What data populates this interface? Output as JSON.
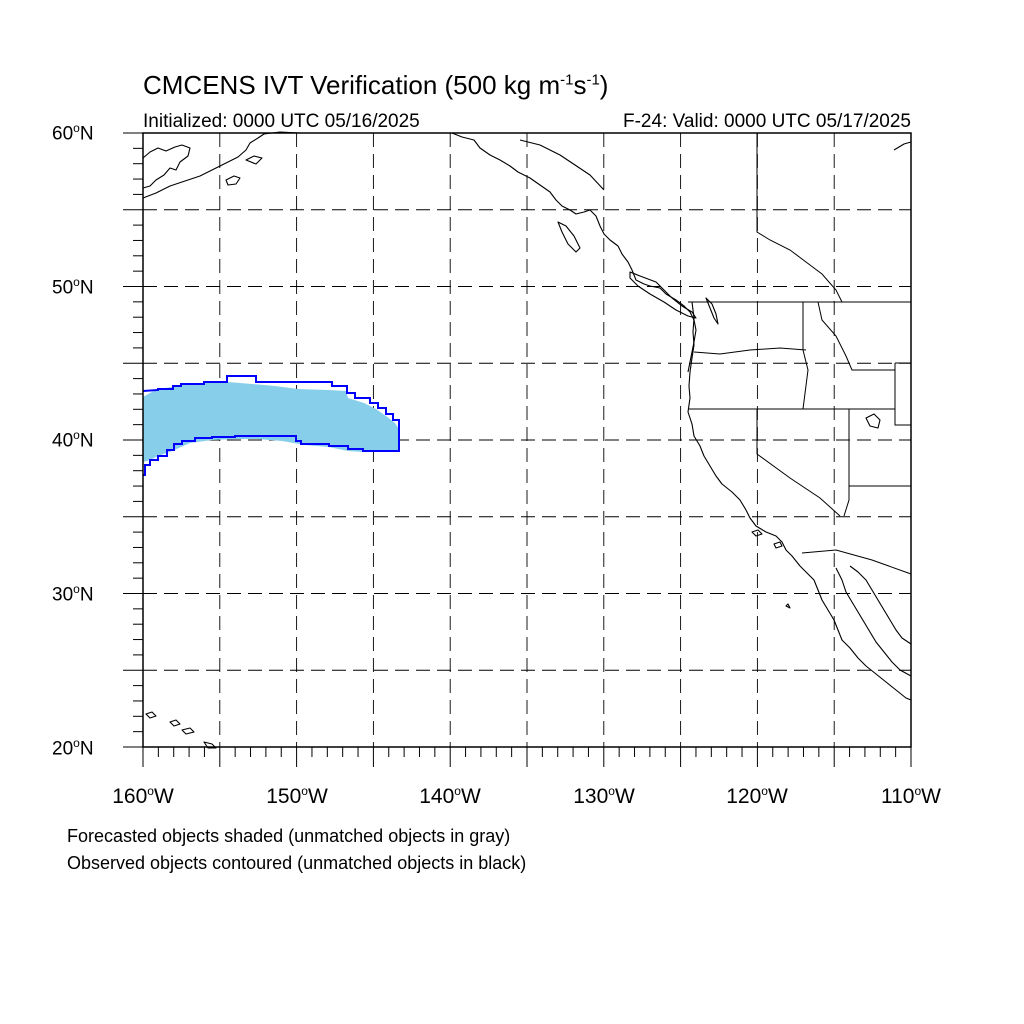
{
  "title": {
    "prefix": "CMCENS IVT Verification (500 kg m",
    "exp1": "-1",
    "mid": "s",
    "exp2": "-1",
    "suffix": ")"
  },
  "subtitle_left": "Initialized: 0000 UTC 05/16/2025",
  "subtitle_right": "F-24: Valid: 0000 UTC 05/17/2025",
  "map": {
    "lon_min": -160,
    "lon_max": -110,
    "lat_min": 20,
    "lat_max": 60,
    "gridlines": "dashed, every 5 degrees",
    "coastline_color": "#000000"
  },
  "lat_labels": [
    "60oN",
    "50oN",
    "40oN",
    "30oN",
    "20oN"
  ],
  "lon_labels": [
    "160oW",
    "150oW",
    "140oW",
    "130oW",
    "120oW",
    "110oW"
  ],
  "objects": {
    "forecast_fill_color": "#87ceeb",
    "observed_contour_color": "#0000ff",
    "forecast_object": {
      "lon_range": [
        -160,
        -143.3
      ],
      "lat_range": [
        38.6,
        43.8
      ]
    },
    "observed_object": {
      "lon_range": [
        -160,
        -143.3
      ],
      "lat_range": [
        37.8,
        44.2
      ]
    }
  },
  "legend": {
    "line1": "Forecasted objects shaded (unmatched objects in gray)",
    "line2": "Observed objects contoured (unmatched objects in black)"
  }
}
